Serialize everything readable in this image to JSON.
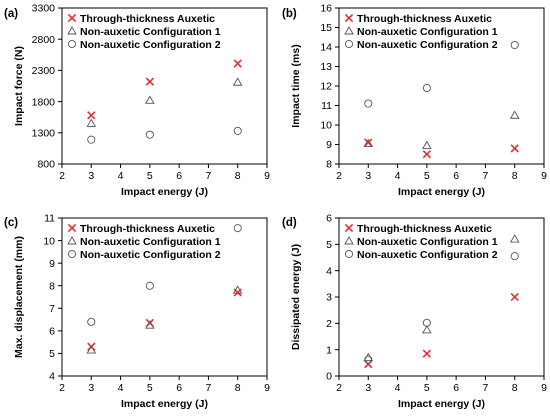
{
  "chart_data": [
    {
      "panel_label": "(a)",
      "type": "scatter",
      "xlabel": "Impact energy (J)",
      "ylabel": "Impact force (N)",
      "xlim": [
        2,
        9
      ],
      "ylim": [
        800,
        3300
      ],
      "xticks": [
        2,
        3,
        4,
        5,
        6,
        7,
        8,
        9
      ],
      "yticks": [
        800,
        1300,
        1800,
        2300,
        2800,
        3300
      ],
      "legend_position": "top-left",
      "series": [
        {
          "name": "Through-thickness Auxetic",
          "marker": "x",
          "color": "#e03030",
          "x": [
            3,
            5,
            8
          ],
          "y": [
            1580,
            2120,
            2410
          ]
        },
        {
          "name": "Non-auxetic Configuration 1",
          "marker": "triangle",
          "color": "#555555",
          "x": [
            3,
            5,
            8
          ],
          "y": [
            1450,
            1820,
            2110
          ]
        },
        {
          "name": "Non-auxetic Configuration 2",
          "marker": "circle",
          "color": "#555555",
          "x": [
            3,
            5,
            8
          ],
          "y": [
            1190,
            1270,
            1330
          ]
        }
      ]
    },
    {
      "panel_label": "(b)",
      "type": "scatter",
      "xlabel": "Impact energy (J)",
      "ylabel": "Impact time (ms)",
      "xlim": [
        2,
        9
      ],
      "ylim": [
        8,
        16
      ],
      "xticks": [
        2,
        3,
        4,
        5,
        6,
        7,
        8,
        9
      ],
      "yticks": [
        8,
        9,
        10,
        11,
        12,
        13,
        14,
        15,
        16
      ],
      "legend_position": "top-left",
      "series": [
        {
          "name": "Through-thickness Auxetic",
          "marker": "x",
          "color": "#e03030",
          "x": [
            3,
            5,
            8
          ],
          "y": [
            9.1,
            8.5,
            8.8
          ]
        },
        {
          "name": "Non-auxetic Configuration 1",
          "marker": "triangle",
          "color": "#555555",
          "x": [
            3,
            5,
            8
          ],
          "y": [
            9.05,
            8.95,
            10.5
          ]
        },
        {
          "name": "Non-auxetic Configuration 2",
          "marker": "circle",
          "color": "#555555",
          "x": [
            3,
            5,
            8
          ],
          "y": [
            11.1,
            11.9,
            14.1
          ]
        }
      ]
    },
    {
      "panel_label": "(c)",
      "type": "scatter",
      "xlabel": "Impact energy (J)",
      "ylabel": "Max. displacement (mm)",
      "xlim": [
        2,
        9
      ],
      "ylim": [
        4,
        11
      ],
      "xticks": [
        2,
        3,
        4,
        5,
        6,
        7,
        8,
        9
      ],
      "yticks": [
        4,
        5,
        6,
        7,
        8,
        9,
        10,
        11
      ],
      "legend_position": "top-left",
      "series": [
        {
          "name": "Through-thickness Auxetic",
          "marker": "x",
          "color": "#e03030",
          "x": [
            3,
            5,
            8
          ],
          "y": [
            5.3,
            6.35,
            7.7
          ]
        },
        {
          "name": "Non-auxetic Configuration 1",
          "marker": "triangle",
          "color": "#555555",
          "x": [
            3,
            5,
            8
          ],
          "y": [
            5.15,
            6.25,
            7.8
          ]
        },
        {
          "name": "Non-auxetic Configuration 2",
          "marker": "circle",
          "color": "#555555",
          "x": [
            3,
            5,
            8
          ],
          "y": [
            6.4,
            8.0,
            10.55
          ]
        }
      ]
    },
    {
      "panel_label": "(d)",
      "type": "scatter",
      "xlabel": "Impact energy (J)",
      "ylabel": "Dissipated energy (J)",
      "xlim": [
        2,
        9
      ],
      "ylim": [
        0,
        6
      ],
      "xticks": [
        2,
        3,
        4,
        5,
        6,
        7,
        8,
        9
      ],
      "yticks": [
        0,
        1,
        2,
        3,
        4,
        5,
        6
      ],
      "legend_position": "top-left",
      "series": [
        {
          "name": "Through-thickness Auxetic",
          "marker": "x",
          "color": "#e03030",
          "x": [
            3,
            5,
            8
          ],
          "y": [
            0.45,
            0.85,
            3.0
          ]
        },
        {
          "name": "Non-auxetic Configuration 1",
          "marker": "triangle",
          "color": "#555555",
          "x": [
            3,
            5,
            8
          ],
          "y": [
            0.7,
            1.75,
            5.2
          ]
        },
        {
          "name": "Non-auxetic Configuration 2",
          "marker": "circle",
          "color": "#555555",
          "x": [
            3,
            5,
            8
          ],
          "y": [
            0.62,
            2.02,
            4.55
          ]
        }
      ]
    }
  ]
}
